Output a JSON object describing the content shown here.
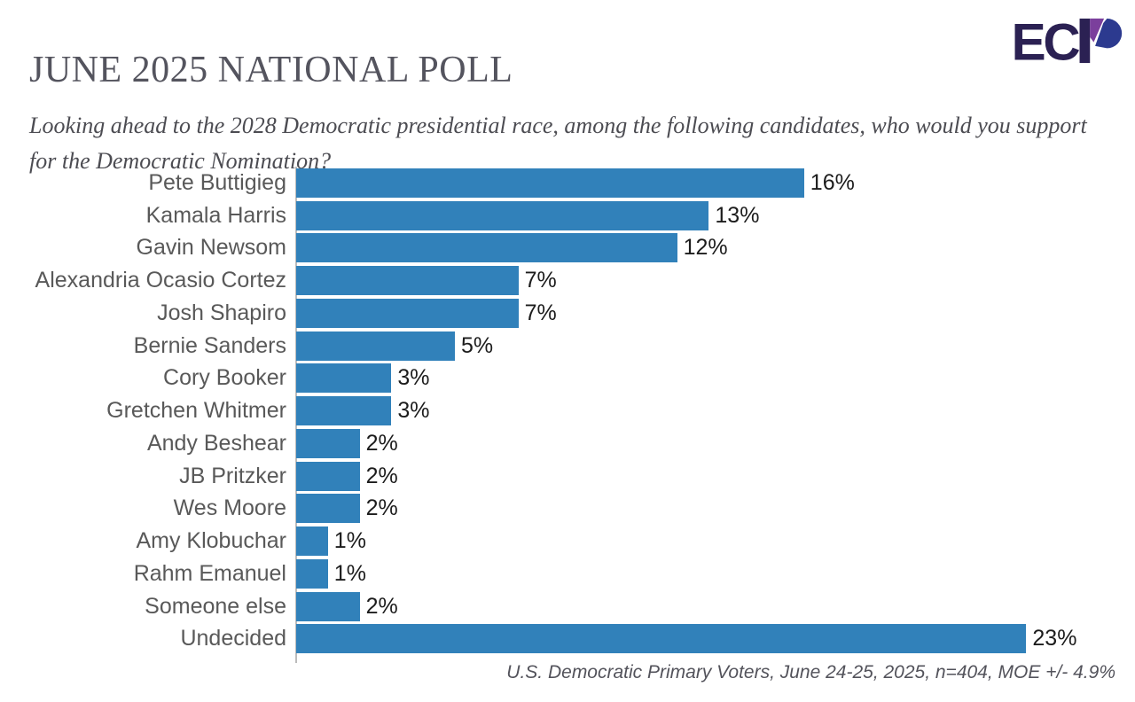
{
  "header": {
    "title": "JUNE 2025 NATIONAL POLL",
    "logo_text": "ECP"
  },
  "question": "Looking ahead to the 2028 Democratic presidential race, among the following candidates, who would you support for the Democratic Nomination?",
  "footer": {
    "source": "U.S. Democratic Primary Voters, June 24-25, 2025, n=404, MOE +/- 4.9%"
  },
  "colors": {
    "bar": "#3181ba",
    "category_label": "#595959",
    "value_label": "#1c1c1c",
    "title": "#54545e",
    "axis": "#bcbcbc",
    "logo_navy": "#2b2153",
    "logo_purple": "#7b3f9c",
    "logo_blue": "#2c3a8f"
  },
  "chart_data": {
    "type": "bar",
    "orientation": "horizontal",
    "title": "JUNE 2025 NATIONAL POLL",
    "subtitle": "Looking ahead to the 2028 Democratic presidential race, among the following candidates, who would you support for the Democratic Nomination?",
    "categories": [
      "Pete Buttigieg",
      "Kamala Harris",
      "Gavin Newsom",
      "Alexandria Ocasio Cortez",
      "Josh Shapiro",
      "Bernie Sanders",
      "Cory Booker",
      "Gretchen Whitmer",
      "Andy Beshear",
      "JB Pritzker",
      "Wes Moore",
      "Amy Klobuchar",
      "Rahm Emanuel",
      "Someone else",
      "Undecided"
    ],
    "values": [
      16,
      13,
      12,
      7,
      7,
      5,
      3,
      3,
      2,
      2,
      2,
      1,
      1,
      2,
      23
    ],
    "value_suffix": "%",
    "xlabel": "",
    "ylabel": "",
    "xlim": [
      0,
      23
    ],
    "grid": false,
    "legend": false,
    "annotation": "U.S. Democratic Primary Voters, June 24-25, 2025, n=404, MOE +/- 4.9%"
  }
}
